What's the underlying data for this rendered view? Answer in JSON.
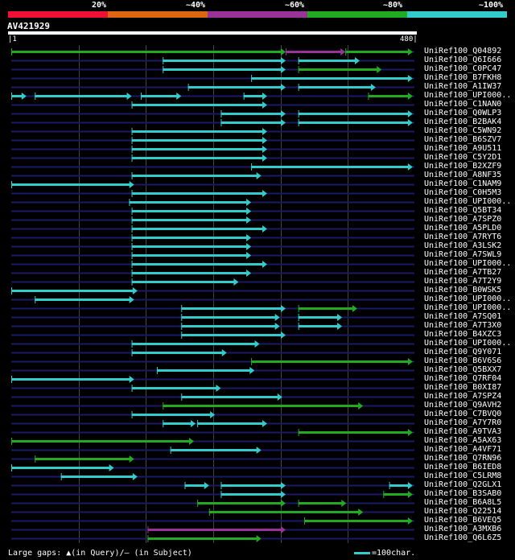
{
  "colors": {
    "bg": "#000000",
    "line": "#1a1a66",
    "grid": "#444444",
    "identity_20": "#ee1133",
    "identity_40": "#dd6611",
    "identity_60": "#993399",
    "identity_80": "#22aa22",
    "identity_100": "#33cccc"
  },
  "scale": {
    "labels": [
      "20%",
      "~40%",
      "~60%",
      "~80%",
      "~100%"
    ],
    "colors": [
      "#ee1133",
      "#dd6611",
      "#993399",
      "#22aa22",
      "#33cccc"
    ]
  },
  "query": {
    "id": "AV421929",
    "start": "1",
    "end": "480",
    "length": 480
  },
  "footer": {
    "gaps_text": "Large gaps: ▲(in Query)/– (in Subject)",
    "legend_text": "=100char."
  },
  "hits": [
    {
      "name": "UniRef100_Q04892",
      "segs": [
        [
          1,
          327,
          "#22aa22"
        ],
        [
          327,
          398,
          "#993399"
        ],
        [
          398,
          478,
          "#22aa22"
        ]
      ]
    },
    {
      "name": "UniRef100_Q6I666",
      "segs": [
        [
          181,
          327,
          "#33cccc"
        ],
        [
          342,
          415,
          "#33cccc"
        ]
      ]
    },
    {
      "name": "UniRef100_C0PC47",
      "segs": [
        [
          181,
          327,
          "#33cccc"
        ],
        [
          342,
          441,
          "#22aa22"
        ]
      ]
    },
    {
      "name": "UniRef100_B7FKH8",
      "segs": [
        [
          286,
          478,
          "#33cccc"
        ]
      ]
    },
    {
      "name": "UniRef100_A1IW37",
      "segs": [
        [
          211,
          327,
          "#33cccc"
        ],
        [
          342,
          434,
          "#33cccc"
        ]
      ]
    },
    {
      "name": "UniRef100_UPI000..",
      "segs": [
        [
          1,
          19,
          "#33cccc"
        ],
        [
          29,
          144,
          "#33cccc"
        ],
        [
          155,
          203,
          "#33cccc"
        ],
        [
          277,
          305,
          "#33cccc"
        ],
        [
          425,
          478,
          "#22aa22"
        ]
      ]
    },
    {
      "name": "UniRef100_C1NAN0",
      "segs": [
        [
          144,
          305,
          "#33cccc"
        ]
      ]
    },
    {
      "name": "UniRef100_Q0WLP3",
      "segs": [
        [
          250,
          327,
          "#33cccc"
        ],
        [
          342,
          478,
          "#33cccc"
        ]
      ]
    },
    {
      "name": "UniRef100_B2BAK4",
      "segs": [
        [
          250,
          327,
          "#33cccc"
        ],
        [
          342,
          478,
          "#33cccc"
        ]
      ]
    },
    {
      "name": "UniRef100_C5WN92",
      "segs": [
        [
          144,
          305,
          "#33cccc"
        ]
      ]
    },
    {
      "name": "UniRef100_B6SZV7",
      "segs": [
        [
          144,
          305,
          "#33cccc"
        ]
      ]
    },
    {
      "name": "UniRef100_A9U511",
      "segs": [
        [
          144,
          305,
          "#33cccc"
        ]
      ]
    },
    {
      "name": "UniRef100_C5Y2D1",
      "segs": [
        [
          144,
          305,
          "#33cccc"
        ]
      ]
    },
    {
      "name": "UniRef100_B2XZF9",
      "segs": [
        [
          286,
          478,
          "#33cccc"
        ]
      ]
    },
    {
      "name": "UniRef100_A8NF35",
      "segs": [
        [
          144,
          298,
          "#33cccc"
        ]
      ]
    },
    {
      "name": "UniRef100_C1NAM9",
      "segs": [
        [
          1,
          147,
          "#33cccc"
        ]
      ]
    },
    {
      "name": "UniRef100_C0H5M3",
      "segs": [
        [
          144,
          305,
          "#33cccc"
        ]
      ]
    },
    {
      "name": "UniRef100_UPI000..",
      "segs": [
        [
          141,
          286,
          "#33cccc"
        ]
      ]
    },
    {
      "name": "UniRef100_Q5BT34",
      "segs": [
        [
          144,
          286,
          "#33cccc"
        ]
      ]
    },
    {
      "name": "UniRef100_A7SPZ0",
      "segs": [
        [
          144,
          286,
          "#33cccc"
        ]
      ]
    },
    {
      "name": "UniRef100_A5PLD0",
      "segs": [
        [
          144,
          305,
          "#33cccc"
        ]
      ]
    },
    {
      "name": "UniRef100_A7RYT6",
      "segs": [
        [
          144,
          286,
          "#33cccc"
        ]
      ]
    },
    {
      "name": "UniRef100_A3LSK2",
      "segs": [
        [
          144,
          286,
          "#33cccc"
        ]
      ]
    },
    {
      "name": "UniRef100_A7SWL9",
      "segs": [
        [
          144,
          286,
          "#33cccc"
        ]
      ]
    },
    {
      "name": "UniRef100_UPI000..",
      "segs": [
        [
          144,
          305,
          "#33cccc"
        ]
      ]
    },
    {
      "name": "UniRef100_A7TB27",
      "segs": [
        [
          144,
          286,
          "#33cccc"
        ]
      ]
    },
    {
      "name": "UniRef100_A7T2Y9",
      "segs": [
        [
          144,
          271,
          "#33cccc"
        ]
      ]
    },
    {
      "name": "UniRef100_B0WSK5",
      "segs": [
        [
          1,
          151,
          "#33cccc"
        ]
      ]
    },
    {
      "name": "UniRef100_UPI000..",
      "segs": [
        [
          29,
          147,
          "#33cccc"
        ]
      ]
    },
    {
      "name": "UniRef100_UPI000..",
      "segs": [
        [
          203,
          327,
          "#33cccc"
        ],
        [
          342,
          412,
          "#22aa22"
        ]
      ]
    },
    {
      "name": "UniRef100_A7SQ01",
      "segs": [
        [
          203,
          320,
          "#33cccc"
        ],
        [
          342,
          394,
          "#33cccc"
        ]
      ]
    },
    {
      "name": "UniRef100_A7T3X0",
      "segs": [
        [
          203,
          320,
          "#33cccc"
        ],
        [
          342,
          394,
          "#33cccc"
        ]
      ]
    },
    {
      "name": "UniRef100_B4XZC3",
      "segs": [
        [
          203,
          327,
          "#33cccc"
        ]
      ]
    },
    {
      "name": "UniRef100_UPI000..",
      "segs": [
        [
          144,
          296,
          "#33cccc"
        ]
      ]
    },
    {
      "name": "UniRef100_Q9Y071",
      "segs": [
        [
          144,
          257,
          "#33cccc"
        ]
      ]
    },
    {
      "name": "UniRef100_B6V6S6",
      "segs": [
        [
          286,
          478,
          "#22aa22"
        ]
      ]
    },
    {
      "name": "UniRef100_Q5BXX7",
      "segs": [
        [
          174,
          290,
          "#33cccc"
        ]
      ]
    },
    {
      "name": "UniRef100_Q7RF04",
      "segs": [
        [
          1,
          147,
          "#33cccc"
        ]
      ]
    },
    {
      "name": "UniRef100_B0XI87",
      "segs": [
        [
          144,
          250,
          "#33cccc"
        ]
      ]
    },
    {
      "name": "UniRef100_A7SPZ4",
      "segs": [
        [
          203,
          323,
          "#33cccc"
        ]
      ]
    },
    {
      "name": "UniRef100_Q9AVH2",
      "segs": [
        [
          181,
          419,
          "#22aa22"
        ]
      ]
    },
    {
      "name": "UniRef100_C7BVQ0",
      "segs": [
        [
          144,
          243,
          "#33cccc"
        ]
      ]
    },
    {
      "name": "UniRef100_A7Y7R0",
      "segs": [
        [
          181,
          220,
          "#33cccc"
        ],
        [
          222,
          305,
          "#33cccc"
        ]
      ]
    },
    {
      "name": "UniRef100_A9TVA3",
      "segs": [
        [
          342,
          478,
          "#22aa22"
        ]
      ]
    },
    {
      "name": "UniRef100_A5AX63",
      "segs": [
        [
          1,
          218,
          "#22aa22"
        ]
      ]
    },
    {
      "name": "UniRef100_A4VF71",
      "segs": [
        [
          190,
          298,
          "#33cccc"
        ]
      ]
    },
    {
      "name": "UniRef100_Q7RN96",
      "segs": [
        [
          29,
          147,
          "#22aa22"
        ]
      ]
    },
    {
      "name": "UniRef100_B6IED8",
      "segs": [
        [
          1,
          123,
          "#33cccc"
        ]
      ]
    },
    {
      "name": "UniRef100_C5LRM8",
      "segs": [
        [
          60,
          151,
          "#33cccc"
        ]
      ]
    },
    {
      "name": "UniRef100_Q2GLX1",
      "segs": [
        [
          207,
          236,
          "#33cccc"
        ],
        [
          250,
          327,
          "#33cccc"
        ],
        [
          450,
          478,
          "#33cccc"
        ]
      ]
    },
    {
      "name": "UniRef100_B3SAB0",
      "segs": [
        [
          250,
          327,
          "#33cccc"
        ],
        [
          443,
          478,
          "#22aa22"
        ]
      ]
    },
    {
      "name": "UniRef100_B6A8L5",
      "segs": [
        [
          222,
          327,
          "#22aa22"
        ],
        [
          342,
          399,
          "#22aa22"
        ]
      ]
    },
    {
      "name": "UniRef100_Q22514",
      "segs": [
        [
          236,
          419,
          "#22aa22"
        ]
      ]
    },
    {
      "name": "UniRef100_B6VEQ5",
      "segs": [
        [
          349,
          478,
          "#22aa22"
        ]
      ]
    },
    {
      "name": "UniRef100_A3MXB6",
      "segs": [
        [
          163,
          327,
          "#993399"
        ]
      ]
    },
    {
      "name": "UniRef100_Q6L6Z5",
      "segs": [
        [
          163,
          298,
          "#22aa22"
        ]
      ]
    }
  ]
}
